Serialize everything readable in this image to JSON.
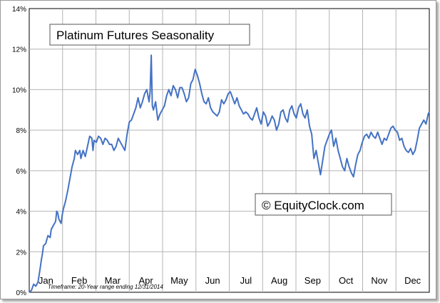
{
  "chart_data": {
    "type": "line",
    "title": "Platinum Futures Seasonality",
    "xlabel": "",
    "ylabel": "",
    "ylim": [
      0,
      14
    ],
    "y_ticks": [
      "0%",
      "2%",
      "4%",
      "6%",
      "8%",
      "10%",
      "12%",
      "14%"
    ],
    "y_tick_values": [
      0,
      2,
      4,
      6,
      8,
      10,
      12,
      14
    ],
    "x_range": [
      1,
      365
    ],
    "categories": [
      "Jan",
      "Feb",
      "Mar",
      "Apr",
      "May",
      "Jun",
      "Jul",
      "Aug",
      "Sep",
      "Oct",
      "Nov",
      "Dec"
    ],
    "grid": true,
    "note": "Timeframe: 20-Year range ending 12/31/2014",
    "watermark": "© EquityClock.com",
    "colors": {
      "line": "#4472c4",
      "grid": "#b4b4b4",
      "frame": "#9a9a9a"
    },
    "series": [
      {
        "values": [
          [
            1,
            0
          ],
          [
            3,
            0.1
          ],
          [
            5,
            0.4
          ],
          [
            7,
            0.3
          ],
          [
            9,
            0.5
          ],
          [
            11,
            1.2
          ],
          [
            12,
            1.6
          ],
          [
            13,
            1.9
          ],
          [
            14,
            2.3
          ],
          [
            16,
            2.4
          ],
          [
            18,
            2.8
          ],
          [
            20,
            2.7
          ],
          [
            21,
            3.1
          ],
          [
            23,
            3.3
          ],
          [
            25,
            3.5
          ],
          [
            26,
            4.0
          ],
          [
            27,
            3.9
          ],
          [
            28,
            3.6
          ],
          [
            30,
            3.4
          ],
          [
            31,
            3.8
          ],
          [
            32,
            4.1
          ],
          [
            34,
            4.5
          ],
          [
            36,
            5.0
          ],
          [
            38,
            5.6
          ],
          [
            40,
            6.2
          ],
          [
            42,
            6.6
          ],
          [
            43,
            7.0
          ],
          [
            45,
            6.8
          ],
          [
            47,
            7.0
          ],
          [
            48,
            6.6
          ],
          [
            50,
            7.0
          ],
          [
            52,
            6.7
          ],
          [
            54,
            7.2
          ],
          [
            56,
            7.7
          ],
          [
            58,
            7.6
          ],
          [
            59,
            7.0
          ],
          [
            60,
            7.5
          ],
          [
            62,
            7.4
          ],
          [
            64,
            7.7
          ],
          [
            66,
            7.6
          ],
          [
            68,
            7.3
          ],
          [
            70,
            7.6
          ],
          [
            72,
            7.5
          ],
          [
            74,
            7.3
          ],
          [
            76,
            7.3
          ],
          [
            78,
            7.0
          ],
          [
            80,
            7.2
          ],
          [
            82,
            7.6
          ],
          [
            84,
            7.4
          ],
          [
            86,
            7.2
          ],
          [
            88,
            7.0
          ],
          [
            90,
            7.8
          ],
          [
            92,
            8.4
          ],
          [
            94,
            8.5
          ],
          [
            96,
            8.8
          ],
          [
            98,
            9.1
          ],
          [
            100,
            9.6
          ],
          [
            102,
            9.1
          ],
          [
            104,
            9.4
          ],
          [
            106,
            9.8
          ],
          [
            108,
            10.0
          ],
          [
            110,
            9.4
          ],
          [
            111,
            9.9
          ],
          [
            112,
            11.7
          ],
          [
            113,
            9.2
          ],
          [
            114,
            9.0
          ],
          [
            116,
            9.4
          ],
          [
            118,
            8.5
          ],
          [
            120,
            8.8
          ],
          [
            122,
            9.0
          ],
          [
            124,
            9.2
          ],
          [
            126,
            9.7
          ],
          [
            128,
            10.0
          ],
          [
            130,
            9.7
          ],
          [
            132,
            10.2
          ],
          [
            134,
            10.0
          ],
          [
            136,
            9.6
          ],
          [
            138,
            10.1
          ],
          [
            140,
            10.1
          ],
          [
            142,
            9.8
          ],
          [
            144,
            9.4
          ],
          [
            146,
            9.6
          ],
          [
            148,
            10.3
          ],
          [
            150,
            10.5
          ],
          [
            152,
            11.0
          ],
          [
            154,
            10.7
          ],
          [
            156,
            10.3
          ],
          [
            158,
            9.8
          ],
          [
            160,
            9.4
          ],
          [
            162,
            9.3
          ],
          [
            164,
            9.6
          ],
          [
            166,
            9.1
          ],
          [
            168,
            8.9
          ],
          [
            170,
            8.8
          ],
          [
            172,
            8.7
          ],
          [
            174,
            8.9
          ],
          [
            176,
            9.5
          ],
          [
            178,
            9.3
          ],
          [
            180,
            9.5
          ],
          [
            182,
            9.8
          ],
          [
            184,
            9.9
          ],
          [
            186,
            9.6
          ],
          [
            188,
            9.3
          ],
          [
            190,
            9.6
          ],
          [
            192,
            9.2
          ],
          [
            194,
            9.0
          ],
          [
            196,
            8.8
          ],
          [
            198,
            8.9
          ],
          [
            200,
            8.8
          ],
          [
            202,
            8.6
          ],
          [
            204,
            8.5
          ],
          [
            206,
            8.8
          ],
          [
            208,
            9.1
          ],
          [
            210,
            8.6
          ],
          [
            212,
            8.3
          ],
          [
            214,
            8.9
          ],
          [
            216,
            8.7
          ],
          [
            218,
            8.2
          ],
          [
            220,
            8.4
          ],
          [
            222,
            8.7
          ],
          [
            224,
            8.5
          ],
          [
            226,
            8.0
          ],
          [
            228,
            8.3
          ],
          [
            230,
            8.9
          ],
          [
            232,
            9.0
          ],
          [
            234,
            8.6
          ],
          [
            236,
            8.4
          ],
          [
            238,
            9.0
          ],
          [
            240,
            9.2
          ],
          [
            242,
            8.8
          ],
          [
            244,
            8.6
          ],
          [
            246,
            9.1
          ],
          [
            248,
            9.3
          ],
          [
            250,
            8.8
          ],
          [
            252,
            8.6
          ],
          [
            254,
            9.0
          ],
          [
            256,
            8.2
          ],
          [
            258,
            7.8
          ],
          [
            260,
            6.6
          ],
          [
            262,
            7.0
          ],
          [
            264,
            6.4
          ],
          [
            266,
            5.8
          ],
          [
            268,
            6.5
          ],
          [
            270,
            7.2
          ],
          [
            272,
            7.5
          ],
          [
            274,
            7.8
          ],
          [
            276,
            8.0
          ],
          [
            278,
            7.2
          ],
          [
            280,
            7.6
          ],
          [
            282,
            7.0
          ],
          [
            284,
            6.6
          ],
          [
            286,
            6.2
          ],
          [
            288,
            6.0
          ],
          [
            290,
            6.6
          ],
          [
            292,
            6.2
          ],
          [
            294,
            5.9
          ],
          [
            296,
            5.7
          ],
          [
            298,
            6.3
          ],
          [
            300,
            6.8
          ],
          [
            302,
            7.0
          ],
          [
            304,
            7.4
          ],
          [
            306,
            7.7
          ],
          [
            308,
            7.8
          ],
          [
            310,
            7.6
          ],
          [
            312,
            7.9
          ],
          [
            314,
            7.7
          ],
          [
            316,
            7.6
          ],
          [
            318,
            7.9
          ],
          [
            320,
            7.6
          ],
          [
            322,
            7.3
          ],
          [
            324,
            7.6
          ],
          [
            326,
            7.5
          ],
          [
            328,
            7.8
          ],
          [
            330,
            8.1
          ],
          [
            332,
            8.2
          ],
          [
            334,
            8.0
          ],
          [
            336,
            7.9
          ],
          [
            338,
            7.5
          ],
          [
            340,
            7.6
          ],
          [
            342,
            7.2
          ],
          [
            344,
            7.0
          ],
          [
            346,
            6.9
          ],
          [
            348,
            7.1
          ],
          [
            350,
            6.8
          ],
          [
            352,
            7.0
          ],
          [
            354,
            7.5
          ],
          [
            356,
            8.1
          ],
          [
            358,
            8.3
          ],
          [
            360,
            8.5
          ],
          [
            362,
            8.3
          ],
          [
            364,
            8.8
          ],
          [
            365,
            8.9
          ]
        ]
      }
    ]
  }
}
